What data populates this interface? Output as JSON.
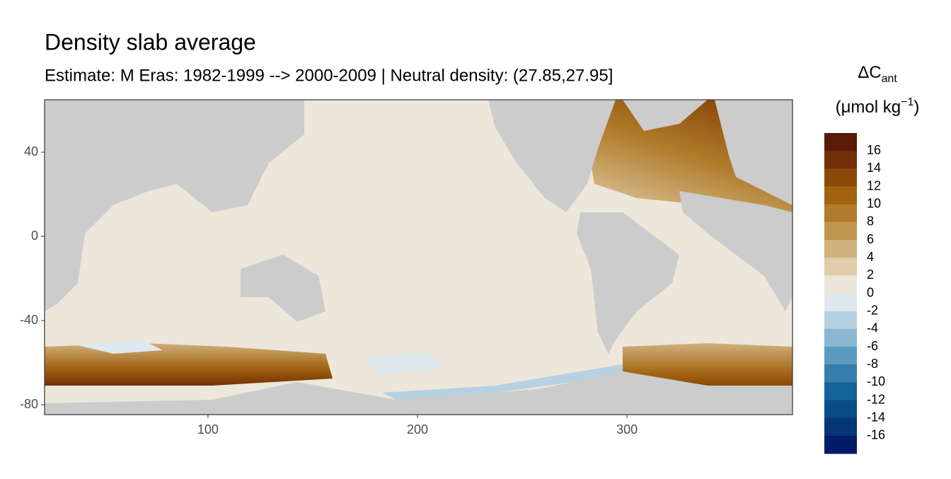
{
  "chart_data": {
    "type": "map",
    "title": "Density slab average",
    "subtitle": "Estimate: M Eras: 1982-1999 --> 2000-2009 | Neutral density: (27.85,27.95]",
    "legend_title": {
      "main": "ΔC",
      "sub": "ant",
      "unit": "(μmol kg",
      "sup": "−1",
      "close": ")"
    },
    "xlim": [
      22,
      379
    ],
    "xticks": [
      100,
      200,
      300
    ],
    "ylim": [
      -84.7,
      64.9
    ],
    "yticks": [
      40,
      0,
      -40,
      -80
    ],
    "legend": {
      "limits": [
        -18,
        18
      ],
      "breaks": [
        16,
        14,
        12,
        10,
        8,
        6,
        4,
        2,
        0,
        -2,
        -4,
        -6,
        -8,
        -10,
        -12,
        -14,
        -16
      ],
      "colors": [
        "#5a1a06",
        "#733008",
        "#8c4a0a",
        "#a0620f",
        "#b07b2a",
        "#bf954f",
        "#d0b07d",
        "#e0cca8",
        "#ede6da",
        "#dfe8ee",
        "#b6d1e2",
        "#8bb7d2",
        "#5c9ac0",
        "#347fae",
        "#14639a",
        "#084d88",
        "#053677",
        "#021b66"
      ]
    }
  }
}
